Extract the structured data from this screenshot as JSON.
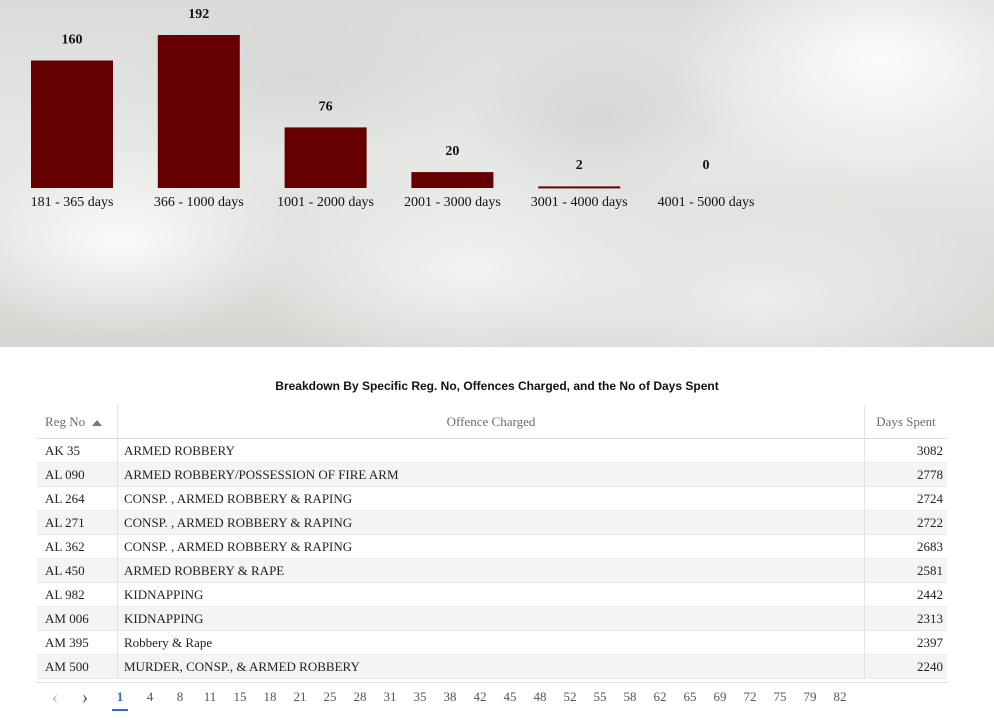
{
  "chart_data": {
    "type": "bar",
    "categories": [
      "181 - 365 days",
      "366 - 1000 days",
      "1001 - 2000 days",
      "2001 - 3000 days",
      "3001 - 4000 days",
      "4001 - 5000 days"
    ],
    "values": [
      160,
      192,
      76,
      20,
      2,
      0
    ],
    "value_labels": [
      "160",
      "192",
      "76",
      "20",
      "2",
      "0"
    ],
    "bar_color": "#660000",
    "ylim": [
      0,
      192
    ],
    "grid": false
  },
  "table": {
    "title": "Breakdown By Specific Reg. No, Offences Charged, and the No of Days Spent",
    "columns": [
      "Reg No",
      "Offence Charged",
      "Days Spent"
    ],
    "rows": [
      [
        "AK 35",
        "ARMED ROBBERY",
        "3082"
      ],
      [
        "AL 090",
        "ARMED ROBBERY/POSSESSION OF FIRE ARM",
        "2778"
      ],
      [
        "AL 264",
        "CONSP. , ARMED ROBBERY & RAPING",
        "2724"
      ],
      [
        "AL 271",
        "CONSP. , ARMED ROBBERY & RAPING",
        "2722"
      ],
      [
        "AL 362",
        "CONSP. , ARMED ROBBERY & RAPING",
        "2683"
      ],
      [
        "AL 450",
        "ARMED ROBBERY & RAPE",
        "2581"
      ],
      [
        "AL 982",
        "KIDNAPPING",
        "2442"
      ],
      [
        "AM 006",
        "KIDNAPPING",
        "2313"
      ],
      [
        "AM 395",
        "Robbery & Rape",
        "2397"
      ],
      [
        "AM 500",
        "MURDER, CONSP., & ARMED ROBBERY",
        "2240"
      ]
    ]
  },
  "pager": {
    "prev_icon": "chevron-left-icon",
    "next_icon": "chevron-right-icon",
    "pages": [
      "1",
      "4",
      "8",
      "11",
      "15",
      "18",
      "21",
      "25",
      "28",
      "31",
      "35",
      "38",
      "42",
      "45",
      "48",
      "52",
      "55",
      "58",
      "62",
      "65",
      "69",
      "72",
      "75",
      "79",
      "82"
    ],
    "active": "1"
  }
}
